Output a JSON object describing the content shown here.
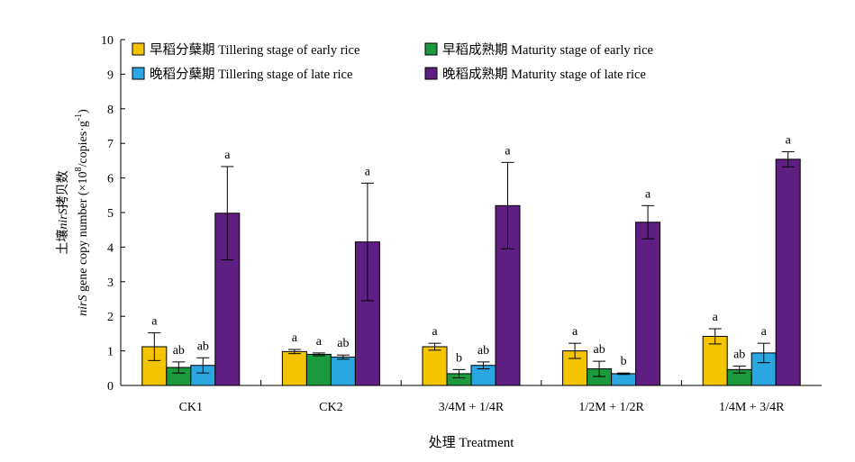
{
  "chart_data": {
    "type": "bar",
    "xlabel": "处理 Treatment",
    "ylabel": {
      "cn_prefix": "土壤",
      "cn_italic": "nirS",
      "cn_suffix": "拷贝数",
      "en_italic": "nirS",
      "en_main": " gene copy number (×10",
      "en_sup1": "8",
      "en_mid": "/copies·g",
      "en_sup2": "-1",
      "en_end": ")"
    },
    "ylim": [
      0,
      10
    ],
    "yticks": [
      "0",
      "1",
      "2",
      "3",
      "4",
      "5",
      "6",
      "7",
      "8",
      "9",
      "10"
    ],
    "categories": [
      "CK1",
      "CK2",
      "3/4M + 1/4R",
      "1/2M + 1/2R",
      "1/4M + 3/4R"
    ],
    "legend_position": "top-left",
    "series": [
      {
        "name": "早稻分蘖期 Tillering stage of early rice",
        "color": "#F5C400",
        "values": [
          1.12,
          0.98,
          1.12,
          1.0,
          1.42
        ],
        "errors": [
          0.4,
          0.06,
          0.1,
          0.22,
          0.22
        ],
        "labels": [
          "a",
          "a",
          "a",
          "a",
          "a"
        ]
      },
      {
        "name": "早稻成熟期 Maturity stage of early rice",
        "color": "#1A9A3C",
        "values": [
          0.52,
          0.9,
          0.34,
          0.48,
          0.46
        ],
        "errors": [
          0.16,
          0.04,
          0.12,
          0.22,
          0.1
        ],
        "labels": [
          "ab",
          "a",
          "b",
          "ab",
          "ab"
        ]
      },
      {
        "name": "晚稻分蘖期 Tillering stage of late rice",
        "color": "#2AA6E0",
        "values": [
          0.58,
          0.82,
          0.58,
          0.34,
          0.94
        ],
        "errors": [
          0.22,
          0.06,
          0.1,
          0.02,
          0.28
        ],
        "labels": [
          "ab",
          "ab",
          "ab",
          "b",
          "a"
        ]
      },
      {
        "name": "晚稻成熟期 Maturity stage of late rice",
        "color": "#5F1E82",
        "values": [
          4.98,
          4.15,
          5.2,
          4.72,
          6.54
        ],
        "errors": [
          1.35,
          1.7,
          1.25,
          0.48,
          0.22
        ],
        "labels": [
          "a",
          "a",
          "a",
          "a",
          "a"
        ]
      }
    ]
  }
}
